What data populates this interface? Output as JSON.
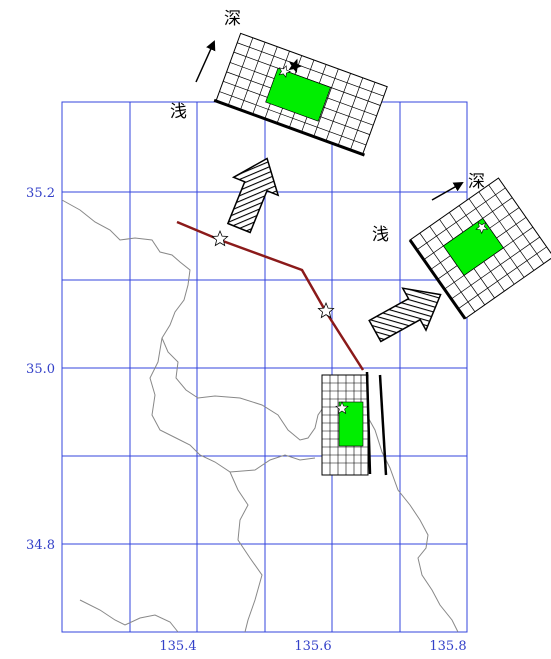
{
  "map": {
    "lon_ticks": [
      "135.4",
      "135.6",
      "135.8"
    ],
    "lat_ticks": [
      "35.2",
      "35.0",
      "34.8"
    ],
    "lon_range": [
      135.2,
      135.8
    ],
    "lat_range": [
      34.7,
      35.3
    ],
    "gridline_step": 0.1,
    "grid_color": "#3344dd",
    "fault_trace_color": "#8b1a1a",
    "asperity_color": "#00ee00",
    "epicenter_marks": 2
  },
  "inset_left": {
    "shallow_label": "浅",
    "deep_label": "深"
  },
  "inset_right": {
    "shallow_label": "浅",
    "deep_label": "深"
  }
}
